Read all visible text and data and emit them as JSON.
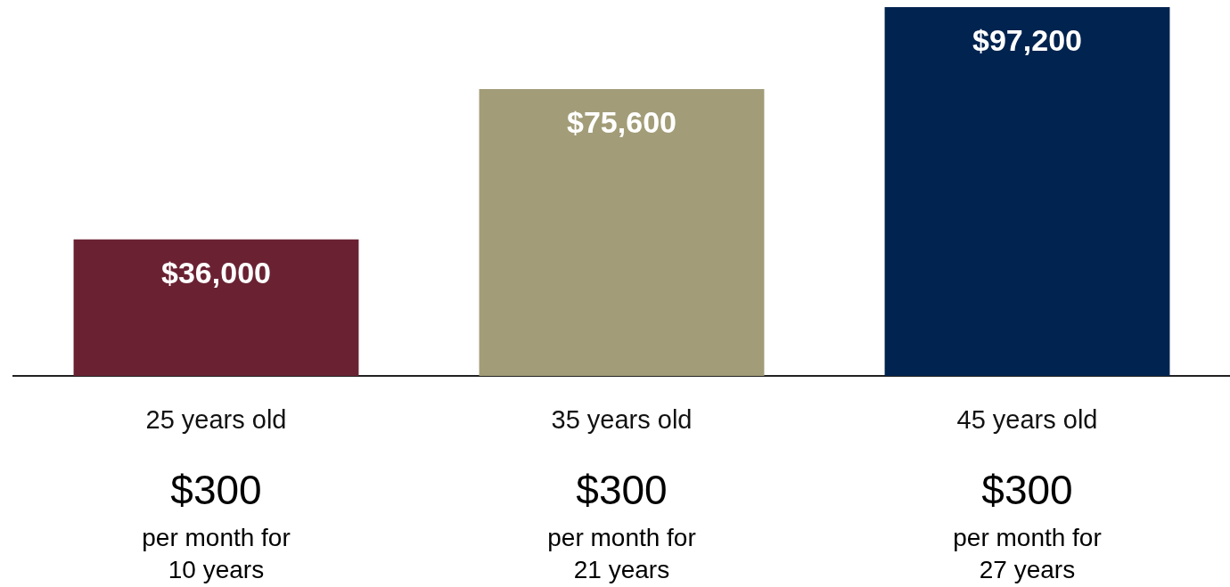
{
  "chart_data": {
    "type": "bar",
    "categories": [
      "25 years old",
      "35 years old",
      "45 years old"
    ],
    "values": [
      36000,
      75600,
      97200
    ],
    "colors": [
      "#6a2233",
      "#a29d78",
      "#00234f"
    ],
    "value_labels": [
      "$36,000",
      "$75,600",
      "$97,200"
    ],
    "annotations": [
      "$300",
      "per month for 10 years",
      "$300",
      "per month for 21 years",
      "$300",
      "per month for 27 years"
    ],
    "grid": false,
    "legend": false
  }
}
